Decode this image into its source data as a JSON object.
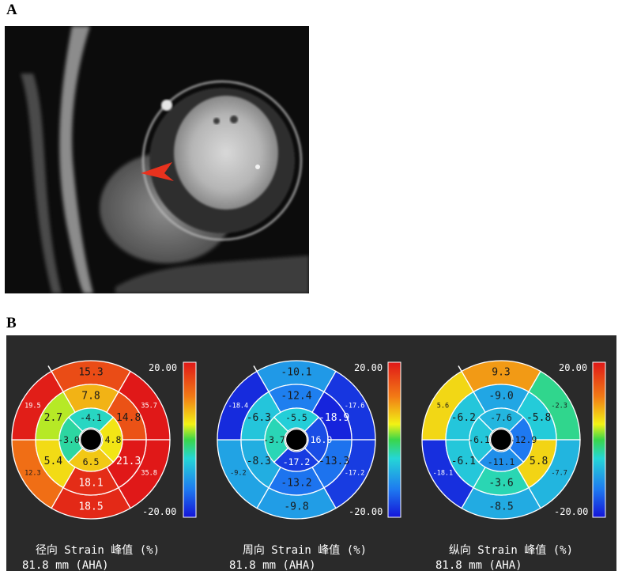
{
  "figure": {
    "panel_a_label": "A",
    "panel_b_label": "B"
  },
  "colors": {
    "panel_bg": "#2a2a2a",
    "arrow": "#e8321e",
    "text": "#ffffff"
  },
  "scale": {
    "max_label": "20.00",
    "min_label": "-20.00",
    "max": 20,
    "min": -20
  },
  "chart_data": [
    {
      "type": "heatmap",
      "title_line1": "径向 Strain 峰值 (%)",
      "title_line2": "81.8 mm (AHA)",
      "segments": {
        "basal": [
          "15.3",
          "35.7",
          "35.8",
          "18.5",
          "12.3",
          "19.5"
        ],
        "mid": [
          "7.8",
          "14.8",
          "21.3",
          "18.1",
          "5.4",
          "2.7"
        ],
        "apical": [
          "-4.1",
          "4.8",
          "6.5",
          "-3.0"
        ]
      }
    },
    {
      "type": "heatmap",
      "title_line1": "周向 Strain 峰值 (%)",
      "title_line2": "81.8 mm (AHA)",
      "segments": {
        "basal": [
          "-10.1",
          "-17.6",
          "-17.2",
          "-9.8",
          "-9.2",
          "-18.4"
        ],
        "mid": [
          "-12.4",
          "-18.9",
          "-13.3",
          "-13.2",
          "-8.3",
          "-6.3"
        ],
        "apical": [
          "-5.5",
          "-16.0",
          "-17.2",
          "-3.7"
        ]
      }
    },
    {
      "type": "heatmap",
      "title_line1": "纵向 Strain 峰值 (%)",
      "title_line2": "81.8 mm (AHA)",
      "segments": {
        "basal": [
          "9.3",
          "-2.3",
          "-7.7",
          "-8.5",
          "-18.1",
          "5.6"
        ],
        "mid": [
          "-9.0",
          "-5.8",
          "5.8",
          "-3.6",
          "-6.1",
          "-6.2"
        ],
        "apical": [
          "-7.6",
          "-12.9",
          "-11.1",
          "-6.1"
        ]
      }
    }
  ]
}
